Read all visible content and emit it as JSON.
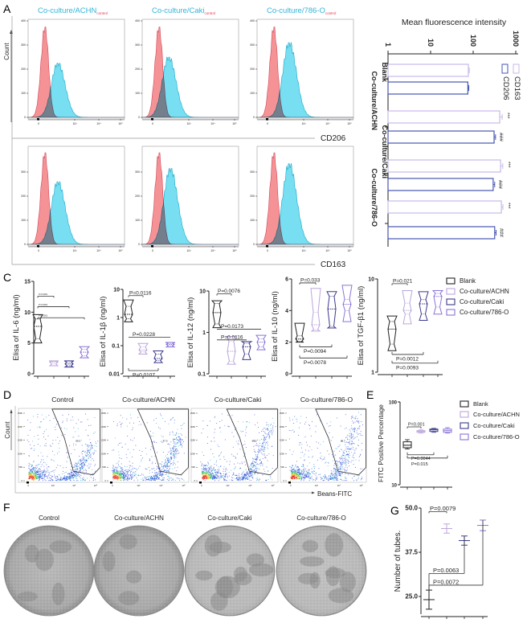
{
  "panel_labels": {
    "A": "A",
    "C": "C",
    "D": "D",
    "E": "E",
    "F": "F",
    "G": "G"
  },
  "colors": {
    "hist_control": "#f37f82",
    "hist_sample": "#3fd0ec",
    "title_cyan": "#33b4d8",
    "subscript_red": "#e8344a",
    "blank": "#222222",
    "achn": "#bca6dc",
    "caki": "#3c3a8c",
    "o786": "#8b74d8",
    "cd163": "#c9b9e8",
    "cd206": "#4656b0"
  },
  "A": {
    "titles": [
      {
        "main": "Co-culture/ACHN",
        "sub": "control"
      },
      {
        "main": "Co-culture/Caki",
        "sub": "control"
      },
      {
        "main": "Co-culture/786-O",
        "sub": "control"
      }
    ],
    "y_axis_label": "Count",
    "row_markers": [
      "CD206",
      "CD163"
    ],
    "y_ticks_top": [
      "0",
      "100",
      "200",
      "300",
      "400"
    ],
    "y_ticks_bottom": [
      "0",
      "100",
      "200",
      "300"
    ],
    "x_ticks": [
      "0",
      "10³",
      "10⁴",
      "10⁵"
    ]
  },
  "D": {
    "titles": [
      "Control",
      "Co-culture/ACHN",
      "Co-culture/Caki",
      "Co-culture/786-O"
    ],
    "y_axis_label": "Count",
    "x_axis_label": "Beans-FITC",
    "gate_values": [
      "88.5",
      "87.9",
      "88.5",
      "89.7"
    ],
    "y_ticks": [
      "0",
      "50K",
      "100K",
      "150K",
      "200K",
      "250K"
    ],
    "x_ticks": [
      "0",
      "10³",
      "10⁴",
      "10⁵"
    ]
  },
  "F": {
    "titles": [
      "Control",
      "Co-culture/ACHN",
      "Co-culture/Caki",
      "Co-culture/786-O"
    ]
  },
  "legend_groups": [
    "Blank",
    "Co-culture/ACHN",
    "Co-culture/Caki",
    "Co-culture/786-O"
  ],
  "chart_data": [
    {
      "id": "A-histograms",
      "type": "histogram-overlay",
      "rows": [
        "CD206",
        "CD163"
      ],
      "columns": [
        "Co-culture/ACHN",
        "Co-culture/Caki",
        "Co-culture/786-O"
      ],
      "control_peak_count": [
        [
          375,
          375,
          375
        ],
        [
          380,
          380,
          380
        ]
      ],
      "sample_peak_count": [
        [
          225,
          250,
          310
        ],
        [
          260,
          315,
          335
        ]
      ],
      "ylim": [
        0,
        400
      ]
    },
    {
      "id": "A-mfi",
      "type": "bar",
      "orientation": "rotated-90",
      "title": "Mean fluorescence intensity",
      "categories": [
        "Blank",
        "Co-culture/ACHN",
        "Co-culture/Caki",
        "Co-culture/786-O"
      ],
      "series": [
        {
          "name": "CD163",
          "values": [
            77,
            420,
            440,
            460
          ],
          "errors": [
            4,
            60,
            55,
            40
          ],
          "marks": [
            "",
            "***",
            "***",
            "***"
          ]
        },
        {
          "name": "CD206",
          "values": [
            75,
            310,
            295,
            320
          ],
          "errors": [
            4,
            25,
            25,
            25
          ],
          "marks": [
            "",
            "###",
            "###",
            "###"
          ]
        }
      ],
      "scale": "log",
      "ylim": [
        1,
        1000
      ],
      "ticks": [
        "1",
        "10",
        "100",
        "1000"
      ]
    },
    {
      "id": "C-IL6",
      "type": "violin",
      "ylabel": "Elisa of  IL-6 (ng/ml)",
      "scale": "linear",
      "ylim": [
        0,
        15
      ],
      "ticks": [
        "0",
        "5",
        "10",
        "15"
      ],
      "tick_values": [
        0,
        5,
        10,
        15
      ],
      "groups": [
        [
          5.0,
          5.7,
          7.7,
          8.9,
          9.6
        ],
        [
          1.3,
          1.6,
          1.9,
          2.0,
          2.1
        ],
        [
          1.1,
          1.3,
          1.6,
          1.9,
          2.1
        ],
        [
          2.6,
          2.9,
          3.5,
          4.0,
          4.4
        ]
      ],
      "comparisons": [
        {
          "to": 3,
          "label": "P<0.0001",
          "level": 9.1
        },
        {
          "to": 2,
          "label": "P<0.0001",
          "level": 10.9
        },
        {
          "to": 1,
          "label": "P<0.0001",
          "level": 12.6
        }
      ]
    },
    {
      "id": "C-IL1b",
      "type": "violin",
      "ylabel": "Elisa of  IL-1β (ng/ml)",
      "scale": "log",
      "ylim": [
        0.01,
        10
      ],
      "ticks": [
        "0.01",
        "0.1",
        "1",
        "10"
      ],
      "tick_values": [
        0.01,
        0.1,
        1,
        10
      ],
      "groups": [
        [
          0.7,
          0.9,
          1.3,
          2.5,
          4.2
        ],
        [
          0.05,
          0.06,
          0.07,
          0.09,
          0.12
        ],
        [
          0.025,
          0.03,
          0.035,
          0.05,
          0.065
        ],
        [
          0.09,
          0.1,
          0.11,
          0.12,
          0.13
        ]
      ],
      "comparisons": [
        {
          "to": 1,
          "label": "P=0.0116",
          "level": 6.0,
          "style": "top"
        },
        {
          "to": 3,
          "label": "P=0.0228",
          "level": 0.2,
          "style": "line"
        },
        {
          "to": 2,
          "label": "P=0.0107",
          "level": 0.013,
          "style": "bottom"
        }
      ]
    },
    {
      "id": "C-IL12",
      "type": "violin",
      "ylabel": "Elisa of  IL-12 (ng/ml)",
      "scale": "log",
      "ylim": [
        0.1,
        10
      ],
      "ticks": [
        "0.1",
        "1",
        "10"
      ],
      "tick_values": [
        0.1,
        1,
        10
      ],
      "groups": [
        [
          1.3,
          1.6,
          3.0,
          5.0,
          5.8
        ],
        [
          0.17,
          0.2,
          0.35,
          0.6,
          0.8
        ],
        [
          0.22,
          0.3,
          0.45,
          0.55,
          0.6
        ],
        [
          0.38,
          0.45,
          0.58,
          0.7,
          0.85
        ]
      ],
      "comparisons": [
        {
          "to": 1,
          "label": "P=0.0076",
          "level": 8.5,
          "style": "top"
        },
        {
          "to": 3,
          "label": "P=0.0173",
          "level": 1.2,
          "style": "line"
        },
        {
          "to": 2,
          "label": "P=0.0116",
          "level": 0.66,
          "style": "line"
        }
      ]
    },
    {
      "id": "C-IL10",
      "type": "violin",
      "ylabel": "Elisa of  IL-10 (ng/ml)",
      "scale": "linear",
      "ylim": [
        0,
        6
      ],
      "ticks": [
        "0",
        "2",
        "4",
        "6"
      ],
      "tick_values": [
        0,
        2,
        4,
        6
      ],
      "groups": [
        [
          2.0,
          2.05,
          2.2,
          2.4,
          3.2
        ],
        [
          2.7,
          2.8,
          3.1,
          3.9,
          5.4
        ],
        [
          2.9,
          3.0,
          4.1,
          4.9,
          5.2
        ],
        [
          3.3,
          4.0,
          4.4,
          4.7,
          5.6
        ]
      ],
      "comparisons": [
        {
          "to": 1,
          "label": "P=0.033",
          "level": 5.75,
          "style": "top"
        },
        {
          "to": 2,
          "label": "P=0.0094",
          "level": 1.7,
          "style": "bottom"
        },
        {
          "to": 3,
          "label": "P=0.0078",
          "level": 1.0,
          "style": "bottom"
        }
      ]
    },
    {
      "id": "C-TGFb1",
      "type": "violin",
      "ylabel": "Elisa of TGF-β1 (ng/ml)",
      "scale": "log",
      "ylim": [
        1,
        10
      ],
      "ticks": [
        "1",
        "10"
      ],
      "tick_values": [
        1,
        10
      ],
      "groups": [
        [
          1.7,
          2.0,
          2.9,
          3.5,
          4.0
        ],
        [
          3.3,
          4.2,
          4.6,
          5.5,
          7.5
        ],
        [
          3.6,
          4.2,
          5.4,
          6.0,
          7.3
        ],
        [
          4.2,
          5.0,
          6.5,
          7.0,
          7.5
        ]
      ],
      "comparisons": [
        {
          "to": 1,
          "label": "P=0.021",
          "level": 8.9,
          "style": "top"
        },
        {
          "to": 2,
          "label": "P=0.0012",
          "level": 1.55,
          "style": "bottom"
        },
        {
          "to": 3,
          "label": "P=0.0093",
          "level": 1.25,
          "style": "bottom"
        }
      ]
    },
    {
      "id": "E",
      "type": "box",
      "ylabel": "FITC Positive Percentage",
      "scale": "log",
      "ylim": [
        10,
        100
      ],
      "ticks": [
        "10",
        "100"
      ],
      "tick_values": [
        10,
        100
      ],
      "groups": [
        [
          27,
          28,
          30,
          33,
          35
        ],
        [
          42,
          43,
          44,
          45,
          46
        ],
        [
          43,
          44,
          46,
          47,
          48
        ],
        [
          42,
          43,
          45,
          47,
          49
        ]
      ],
      "comparisons": [
        {
          "to": 1,
          "label": "P=0.001",
          "level": 50,
          "style": "top"
        },
        {
          "to": 2,
          "label": "P=0.0044",
          "level": 23,
          "style": "bottom"
        },
        {
          "to": 3,
          "label": "P=0.015",
          "level": 21,
          "style": "bottom"
        }
      ]
    },
    {
      "id": "G",
      "type": "errorbar",
      "ylabel": "Number of tubes.",
      "scale": "linear",
      "ylim": [
        20,
        50
      ],
      "ticks": [
        "25.0",
        "37.5",
        "50.0"
      ],
      "tick_values": [
        25,
        37.5,
        50
      ],
      "groups": [
        {
          "mean": 24.1,
          "sd": 2.7
        },
        {
          "mean": 44.2,
          "sd": 1.3
        },
        {
          "mean": 40.8,
          "sd": 1.3
        },
        {
          "mean": 45.1,
          "sd": 1.5
        }
      ],
      "comparisons": [
        {
          "to": 1,
          "label": "P=0.0079",
          "level": 49.0,
          "style": "top"
        },
        {
          "to": 2,
          "label": "P=0.0063",
          "level": 31.5,
          "style": "line"
        },
        {
          "to": 3,
          "label": "P=0.0072",
          "level": 28.2,
          "style": "line"
        }
      ]
    }
  ]
}
